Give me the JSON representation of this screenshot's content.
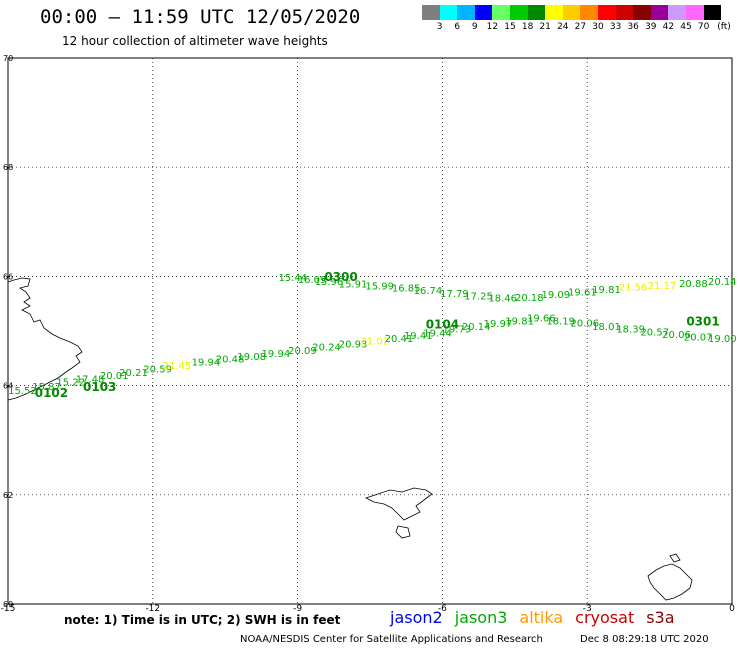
{
  "header": {
    "title": "00:00 – 11:59 UTC 12/05/2020",
    "subtitle": "12 hour collection of altimeter wave heights"
  },
  "colorbar": {
    "unit": "(ft)",
    "swatches": [
      "#7f7f7f",
      "#00ffff",
      "#00b4ff",
      "#0000ff",
      "#66ff66",
      "#00cc00",
      "#008800",
      "#ffff00",
      "#ffcc00",
      "#ff8800",
      "#ff0000",
      "#cc0000",
      "#880000",
      "#990099",
      "#cc99ff",
      "#ff66ff",
      "#000000"
    ],
    "labels": [
      "3",
      "6",
      "9",
      "12",
      "15",
      "18",
      "21",
      "24",
      "27",
      "30",
      "33",
      "36",
      "39",
      "42",
      "45",
      "70"
    ]
  },
  "map": {
    "x_ticks": [
      "-15",
      "-12",
      "-9",
      "-6",
      "-3",
      "0"
    ],
    "y_ticks": [
      "70",
      "68",
      "66",
      "64",
      "62",
      "60"
    ],
    "lon_range": [
      -15,
      0
    ],
    "lat_range": [
      60,
      70
    ]
  },
  "tracks": {
    "labels": [
      {
        "text": "0102",
        "lon": -14.1,
        "lat": 63.79,
        "color": "#008800",
        "bold": true
      },
      {
        "text": "0103",
        "lon": -13.1,
        "lat": 63.9,
        "color": "#008800",
        "bold": true
      },
      {
        "text": "0104",
        "lon": -6.0,
        "lat": 65.05,
        "color": "#008800",
        "bold": true
      },
      {
        "text": "0300",
        "lon": -8.1,
        "lat": 65.92,
        "color": "#008800",
        "bold": true
      },
      {
        "text": "0301",
        "lon": -0.6,
        "lat": 65.1,
        "color": "#008800",
        "bold": true
      }
    ],
    "points": [
      {
        "text": "15.52",
        "lon": -14.7,
        "lat": 63.85,
        "color": "#00aa00"
      },
      {
        "text": "15.87",
        "lon": -14.2,
        "lat": 63.92,
        "color": "#00aa00"
      },
      {
        "text": "15.22",
        "lon": -13.7,
        "lat": 64.0,
        "color": "#00aa00"
      },
      {
        "text": "17.48",
        "lon": -13.3,
        "lat": 64.06,
        "color": "#00aa00"
      },
      {
        "text": "20.01",
        "lon": -12.8,
        "lat": 64.12,
        "color": "#00aa00"
      },
      {
        "text": "20.21",
        "lon": -12.4,
        "lat": 64.18,
        "color": "#00aa00"
      },
      {
        "text": "20.59",
        "lon": -11.9,
        "lat": 64.24,
        "color": "#00aa00"
      },
      {
        "text": "21.45",
        "lon": -11.5,
        "lat": 64.3,
        "color": "#eeee00"
      },
      {
        "text": "19.94",
        "lon": -10.9,
        "lat": 64.37,
        "color": "#00aa00"
      },
      {
        "text": "20.48",
        "lon": -10.4,
        "lat": 64.42,
        "color": "#00aa00"
      },
      {
        "text": "19.08",
        "lon": -9.95,
        "lat": 64.47,
        "color": "#00aa00"
      },
      {
        "text": "19.94",
        "lon": -9.45,
        "lat": 64.52,
        "color": "#00aa00"
      },
      {
        "text": "20.09",
        "lon": -8.9,
        "lat": 64.58,
        "color": "#00aa00"
      },
      {
        "text": "20.24",
        "lon": -8.4,
        "lat": 64.64,
        "color": "#00aa00"
      },
      {
        "text": "20.93",
        "lon": -7.85,
        "lat": 64.7,
        "color": "#00aa00"
      },
      {
        "text": "21.02",
        "lon": -7.4,
        "lat": 64.75,
        "color": "#eeee00"
      },
      {
        "text": "20.41",
        "lon": -6.9,
        "lat": 64.8,
        "color": "#00aa00"
      },
      {
        "text": "19.41",
        "lon": -6.5,
        "lat": 64.85,
        "color": "#00aa00"
      },
      {
        "text": "19.44",
        "lon": -6.1,
        "lat": 64.9,
        "color": "#00aa00"
      },
      {
        "text": "19.73",
        "lon": -5.7,
        "lat": 64.97,
        "color": "#00aa00"
      },
      {
        "text": "20.14",
        "lon": -5.3,
        "lat": 65.02,
        "color": "#00aa00"
      },
      {
        "text": "19.97",
        "lon": -4.85,
        "lat": 65.07,
        "color": "#00aa00"
      },
      {
        "text": "19.81",
        "lon": -4.4,
        "lat": 65.12,
        "color": "#00aa00"
      },
      {
        "text": "19.66",
        "lon": -3.95,
        "lat": 65.17,
        "color": "#00aa00"
      },
      {
        "text": "18.19",
        "lon": -3.55,
        "lat": 65.12,
        "color": "#00aa00"
      },
      {
        "text": "20.06",
        "lon": -3.05,
        "lat": 65.08,
        "color": "#00aa00"
      },
      {
        "text": "18.01",
        "lon": -2.6,
        "lat": 65.02,
        "color": "#00aa00"
      },
      {
        "text": "18.39",
        "lon": -2.1,
        "lat": 64.97,
        "color": "#00aa00"
      },
      {
        "text": "20.57",
        "lon": -1.6,
        "lat": 64.92,
        "color": "#00aa00"
      },
      {
        "text": "20.06",
        "lon": -1.15,
        "lat": 64.87,
        "color": "#00aa00"
      },
      {
        "text": "20.07",
        "lon": -0.7,
        "lat": 64.83,
        "color": "#00aa00"
      },
      {
        "text": "19.00",
        "lon": -0.2,
        "lat": 64.8,
        "color": "#00aa00"
      },
      {
        "text": "15.44",
        "lon": -9.1,
        "lat": 65.92,
        "color": "#00aa00"
      },
      {
        "text": "16.09",
        "lon": -8.7,
        "lat": 65.88,
        "color": "#00aa00"
      },
      {
        "text": "15.96",
        "lon": -8.35,
        "lat": 65.84,
        "color": "#00aa00"
      },
      {
        "text": "15.91",
        "lon": -7.85,
        "lat": 65.8,
        "color": "#00aa00"
      },
      {
        "text": "15.99",
        "lon": -7.3,
        "lat": 65.76,
        "color": "#00aa00"
      },
      {
        "text": "16.85",
        "lon": -6.75,
        "lat": 65.72,
        "color": "#00aa00"
      },
      {
        "text": "16.74",
        "lon": -6.3,
        "lat": 65.68,
        "color": "#00aa00"
      },
      {
        "text": "17.79",
        "lon": -5.75,
        "lat": 65.62,
        "color": "#00aa00"
      },
      {
        "text": "17.25",
        "lon": -5.25,
        "lat": 65.58,
        "color": "#00aa00"
      },
      {
        "text": "18.46",
        "lon": -4.75,
        "lat": 65.54,
        "color": "#00aa00"
      },
      {
        "text": "20.18",
        "lon": -4.2,
        "lat": 65.55,
        "color": "#00aa00"
      },
      {
        "text": "19.09",
        "lon": -3.65,
        "lat": 65.6,
        "color": "#00aa00"
      },
      {
        "text": "19.61",
        "lon": -3.1,
        "lat": 65.65,
        "color": "#00aa00"
      },
      {
        "text": "19.81",
        "lon": -2.6,
        "lat": 65.7,
        "color": "#00aa00"
      },
      {
        "text": "21.56",
        "lon": -2.05,
        "lat": 65.74,
        "color": "#eeee00"
      },
      {
        "text": "21.17",
        "lon": -1.45,
        "lat": 65.77,
        "color": "#eeee00"
      },
      {
        "text": "20.88",
        "lon": -0.8,
        "lat": 65.81,
        "color": "#00aa00"
      },
      {
        "text": "20.14",
        "lon": -0.2,
        "lat": 65.84,
        "color": "#00aa00"
      }
    ]
  },
  "footer": {
    "note": "note:  1) Time is in UTC;  2) SWH is in feet",
    "credit": "NOAA/NESDIS Center for Satellite Applications and Research",
    "timestamp": "Dec  8 08:29:18 UTC 2020",
    "legend": [
      {
        "name": "jason2",
        "color": "#0000ee"
      },
      {
        "name": "jason3",
        "color": "#00aa00"
      },
      {
        "name": "altika",
        "color": "#ff9900"
      },
      {
        "name": "cryosat",
        "color": "#cc0000"
      },
      {
        "name": "s3a",
        "color": "#880000"
      }
    ]
  }
}
